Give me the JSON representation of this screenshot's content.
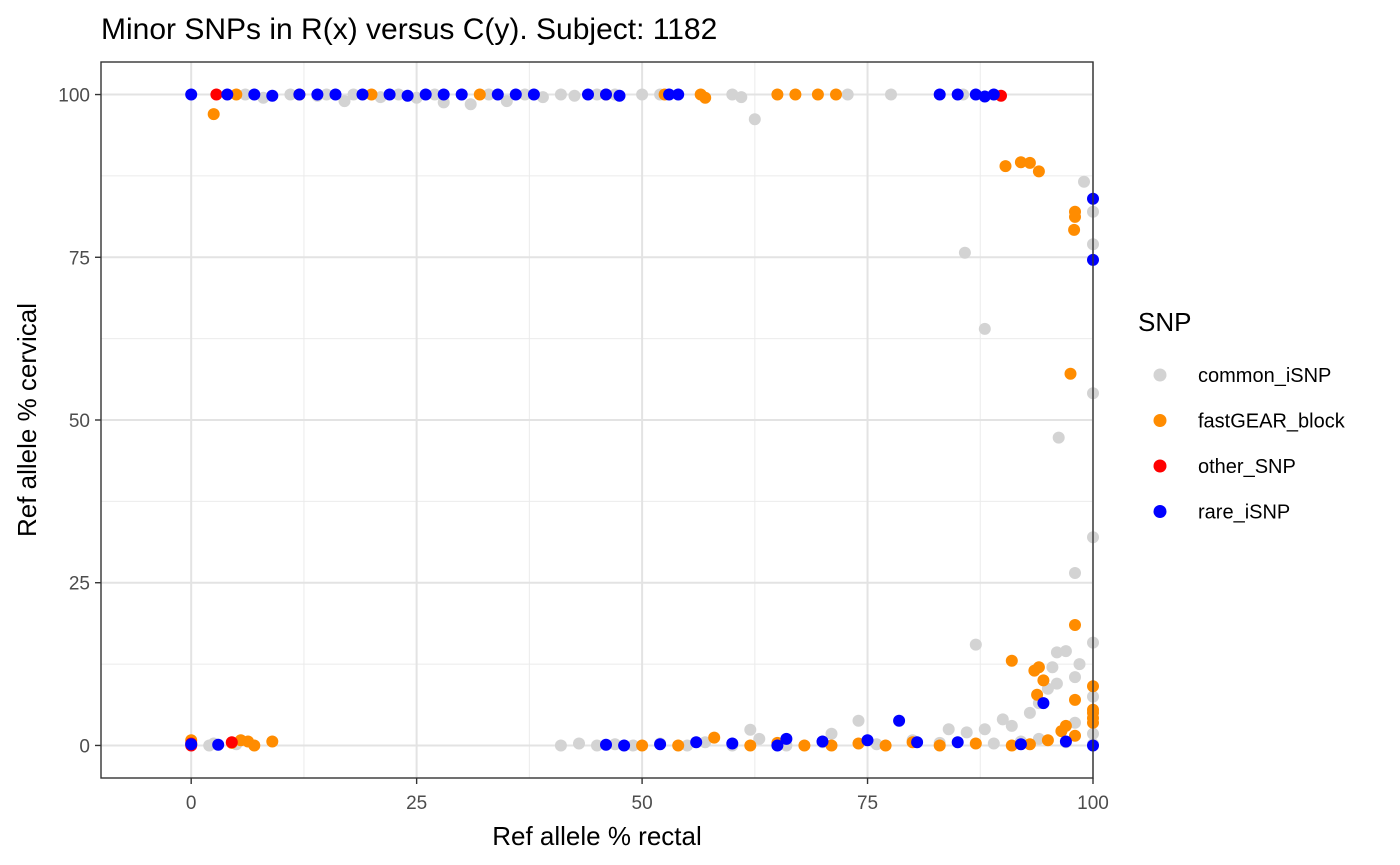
{
  "chart_data": {
    "type": "scatter",
    "title": "Minor SNPs in R(x) versus C(y). Subject: 1182",
    "xlabel": "Ref allele % rectal",
    "ylabel": "Ref allele % cervical",
    "xlim": [
      -10,
      100
    ],
    "ylim": [
      -5,
      105
    ],
    "x_ticks": [
      0,
      25,
      50,
      75,
      100
    ],
    "y_ticks": [
      0,
      25,
      50,
      75,
      100
    ],
    "x_tick_labels": [
      "0",
      "25",
      "50",
      "75",
      "100"
    ],
    "y_tick_labels": [
      "0",
      "25",
      "50",
      "75",
      "100"
    ],
    "grid": true,
    "legend": {
      "title": "SNP",
      "position": "right"
    },
    "series": [
      {
        "name": "common_iSNP",
        "color": "#d3d3d3",
        "points": [
          [
            6,
            100
          ],
          [
            8,
            99.5
          ],
          [
            11,
            100
          ],
          [
            14,
            99.8
          ],
          [
            15,
            100
          ],
          [
            17,
            99
          ],
          [
            18,
            100
          ],
          [
            21,
            99.6
          ],
          [
            23,
            100
          ],
          [
            25,
            99.5
          ],
          [
            27,
            100
          ],
          [
            28,
            98.8
          ],
          [
            30,
            100
          ],
          [
            31,
            98.5
          ],
          [
            33,
            100
          ],
          [
            35,
            99
          ],
          [
            37,
            100
          ],
          [
            39,
            99.6
          ],
          [
            41,
            100
          ],
          [
            42.5,
            99.8
          ],
          [
            45,
            100
          ],
          [
            47,
            100
          ],
          [
            50,
            100
          ],
          [
            52,
            100
          ],
          [
            60,
            100
          ],
          [
            61,
            99.6
          ],
          [
            62.5,
            96.2
          ],
          [
            72.8,
            100
          ],
          [
            77.6,
            100
          ],
          [
            85.6,
            100
          ],
          [
            85.8,
            75.7
          ],
          [
            88,
            64
          ],
          [
            96.2,
            47.3
          ],
          [
            99,
            86.6
          ],
          [
            100,
            82
          ],
          [
            100,
            77
          ],
          [
            100,
            54.1
          ],
          [
            100,
            32
          ],
          [
            98,
            26.5
          ],
          [
            100,
            15.8
          ],
          [
            87,
            15.5
          ],
          [
            96,
            14.3
          ],
          [
            97,
            14.5
          ],
          [
            95.5,
            12
          ],
          [
            98.5,
            12.5
          ],
          [
            98,
            10.5
          ],
          [
            96,
            9.5
          ],
          [
            95,
            8.7
          ],
          [
            94,
            6.5
          ],
          [
            100,
            7.5
          ],
          [
            93,
            5
          ],
          [
            90,
            4
          ],
          [
            98,
            3.5
          ],
          [
            91,
            3
          ],
          [
            88,
            2.5
          ],
          [
            86,
            2
          ],
          [
            84,
            2.5
          ],
          [
            74,
            3.8
          ],
          [
            71,
            1.8
          ],
          [
            62,
            2.4
          ],
          [
            63,
            1
          ],
          [
            57,
            0.5
          ],
          [
            52,
            0.3
          ],
          [
            47,
            0.2
          ],
          [
            43,
            0.3
          ],
          [
            41,
            0
          ],
          [
            45,
            0
          ],
          [
            49,
            0
          ],
          [
            55,
            0
          ],
          [
            60,
            0
          ],
          [
            66,
            0
          ],
          [
            70,
            0.5
          ],
          [
            76,
            0.2
          ],
          [
            80,
            0.8
          ],
          [
            83,
            0.4
          ],
          [
            89,
            0.3
          ],
          [
            92,
            0.6
          ],
          [
            94,
            1
          ],
          [
            97,
            0.5
          ],
          [
            100,
            0.2
          ],
          [
            100,
            1.8
          ],
          [
            2,
            0
          ],
          [
            2.5,
            0.3
          ],
          [
            5,
            0.2
          ]
        ]
      },
      {
        "name": "fastGEAR_block",
        "color": "#ff8c00",
        "points": [
          [
            5,
            100
          ],
          [
            12,
            100
          ],
          [
            20,
            100
          ],
          [
            32,
            100
          ],
          [
            46,
            100
          ],
          [
            52.5,
            100
          ],
          [
            56.5,
            100
          ],
          [
            57,
            99.5
          ],
          [
            65,
            100
          ],
          [
            67,
            100
          ],
          [
            69.5,
            100
          ],
          [
            71.5,
            100
          ],
          [
            2.5,
            97
          ],
          [
            90.3,
            89
          ],
          [
            92,
            89.6
          ],
          [
            93,
            89.5
          ],
          [
            94,
            88.2
          ],
          [
            98,
            82
          ],
          [
            98,
            81.2
          ],
          [
            97.9,
            79.2
          ],
          [
            97.5,
            57.1
          ],
          [
            98,
            18.5
          ],
          [
            91,
            13
          ],
          [
            94,
            12
          ],
          [
            93.5,
            11.5
          ],
          [
            94.5,
            10
          ],
          [
            100,
            9.1
          ],
          [
            93.8,
            7.8
          ],
          [
            98,
            7
          ],
          [
            100,
            5.5
          ],
          [
            100,
            5
          ],
          [
            100,
            4.2
          ],
          [
            97,
            3
          ],
          [
            100,
            3.5
          ],
          [
            96.5,
            2.2
          ],
          [
            98,
            1.5
          ],
          [
            95,
            0.8
          ],
          [
            93,
            0.2
          ],
          [
            91,
            0
          ],
          [
            87,
            0.3
          ],
          [
            83,
            0
          ],
          [
            80,
            0.5
          ],
          [
            77,
            0
          ],
          [
            74,
            0.3
          ],
          [
            71,
            0
          ],
          [
            68,
            0
          ],
          [
            65,
            0.4
          ],
          [
            62,
            0
          ],
          [
            58,
            1.2
          ],
          [
            54,
            0
          ],
          [
            50,
            0
          ],
          [
            5.5,
            0.8
          ],
          [
            6.3,
            0.6
          ],
          [
            7,
            0
          ],
          [
            9,
            0.6
          ],
          [
            4.5,
            0.4
          ],
          [
            0,
            0.8
          ]
        ]
      },
      {
        "name": "other_SNP",
        "color": "#ff0000",
        "points": [
          [
            2.8,
            100
          ],
          [
            89.8,
            99.8
          ],
          [
            4.5,
            0.5
          ],
          [
            0,
            0.3
          ],
          [
            0,
            0
          ]
        ]
      },
      {
        "name": "rare_iSNP",
        "color": "#0000ff",
        "points": [
          [
            0,
            100
          ],
          [
            4,
            100
          ],
          [
            7,
            100
          ],
          [
            9,
            99.8
          ],
          [
            12,
            100
          ],
          [
            14,
            100
          ],
          [
            16,
            100
          ],
          [
            19,
            100
          ],
          [
            22,
            100
          ],
          [
            24,
            99.8
          ],
          [
            26,
            100
          ],
          [
            28,
            100
          ],
          [
            30,
            100
          ],
          [
            34,
            100
          ],
          [
            36,
            100
          ],
          [
            38,
            100
          ],
          [
            44,
            100
          ],
          [
            46,
            100
          ],
          [
            47.5,
            99.8
          ],
          [
            53,
            100
          ],
          [
            54,
            100
          ],
          [
            83,
            100
          ],
          [
            85,
            100
          ],
          [
            87,
            100
          ],
          [
            88,
            99.7
          ],
          [
            89,
            100
          ],
          [
            100,
            84
          ],
          [
            100,
            74.6
          ],
          [
            94.5,
            6.5
          ],
          [
            78.5,
            3.8
          ],
          [
            80.5,
            0.5
          ],
          [
            75,
            0.8
          ],
          [
            70,
            0.6
          ],
          [
            66,
            1
          ],
          [
            65,
            0
          ],
          [
            60,
            0.3
          ],
          [
            56,
            0.5
          ],
          [
            52,
            0.2
          ],
          [
            48,
            0
          ],
          [
            46,
            0.1
          ],
          [
            85,
            0.5
          ],
          [
            92,
            0.2
          ],
          [
            97,
            0.6
          ],
          [
            100,
            0
          ],
          [
            3,
            0.1
          ],
          [
            0,
            0.2
          ]
        ]
      }
    ]
  }
}
